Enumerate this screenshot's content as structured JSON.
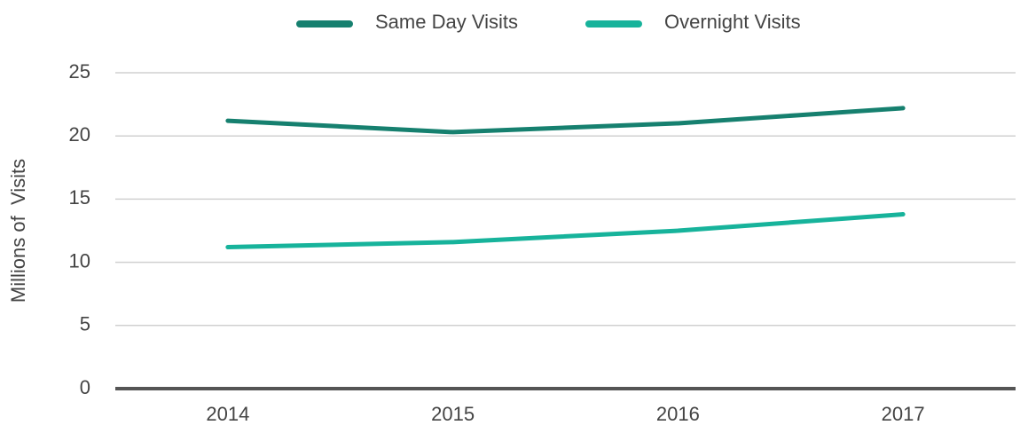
{
  "chart_data": {
    "type": "line",
    "categories": [
      "2014",
      "2015",
      "2016",
      "2017"
    ],
    "series": [
      {
        "name": "Same Day Visits",
        "color": "#16806f",
        "values": [
          21.2,
          20.3,
          21.0,
          22.2
        ]
      },
      {
        "name": "Overnight Visits",
        "color": "#17b39b",
        "values": [
          11.2,
          11.6,
          12.5,
          13.8
        ]
      }
    ],
    "y_label": "Millions of  Visits",
    "ylim": [
      0,
      25
    ],
    "yticks": [
      0,
      5,
      10,
      15,
      20,
      25
    ],
    "grid": true,
    "legend": "top"
  }
}
